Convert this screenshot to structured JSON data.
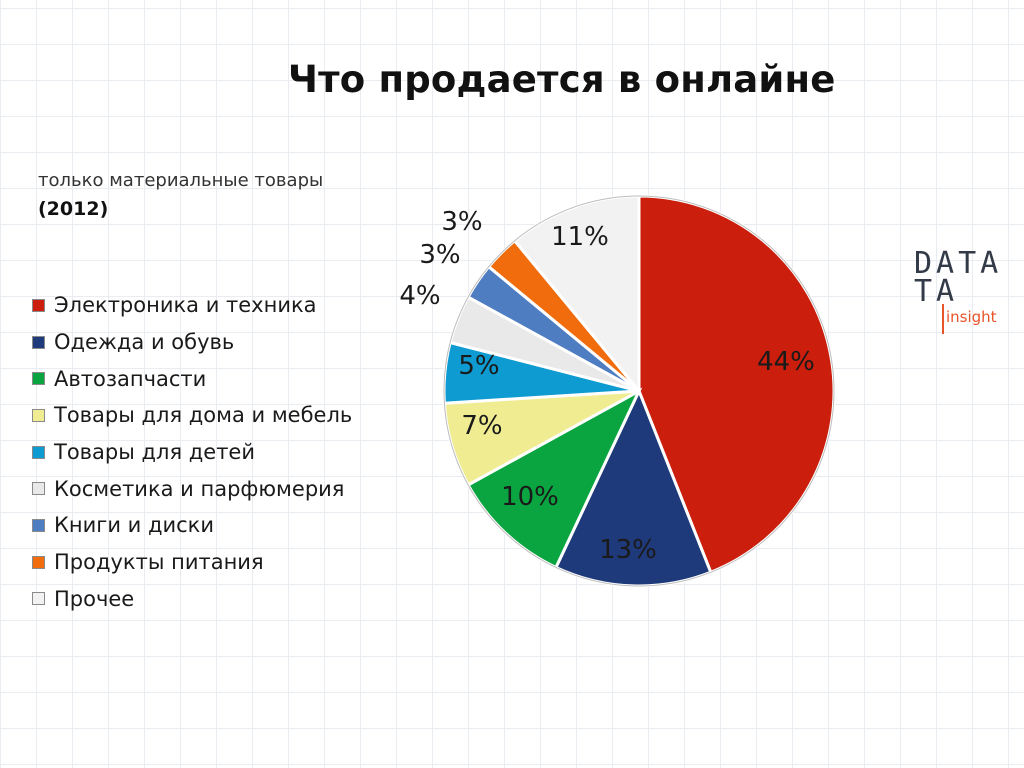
{
  "title": "Что продается в онлайне",
  "subtitle": "только материальные товары",
  "year": "(2012)",
  "logo": {
    "line1": "DATA",
    "line2": "TA",
    "tagline": "insight",
    "accent": "#e8542a"
  },
  "chart_data": {
    "type": "pie",
    "title": "Что продается в онлайне",
    "labels": [
      "Электроника и техника",
      "Одежда и обувь",
      "Автозапчасти",
      "Товары для дома и мебель",
      "Товары для детей",
      "Косметика и парфюмерия",
      "Книги и диски",
      "Продукты питания",
      "Прочее"
    ],
    "values": [
      44,
      13,
      10,
      7,
      5,
      4,
      3,
      3,
      11
    ],
    "value_labels": [
      "44%",
      "13%",
      "10%",
      "7%",
      "5%",
      "4%",
      "3%",
      "3%",
      "11%"
    ],
    "colors": [
      "#cc1e0c",
      "#1f3a7a",
      "#0aa541",
      "#f0ec92",
      "#0e9bd1",
      "#e9e9e9",
      "#4f7dc2",
      "#f06c0c",
      "#f2f2f2"
    ],
    "legend_position": "left",
    "start_angle": "12 o'clock, clockwise"
  }
}
